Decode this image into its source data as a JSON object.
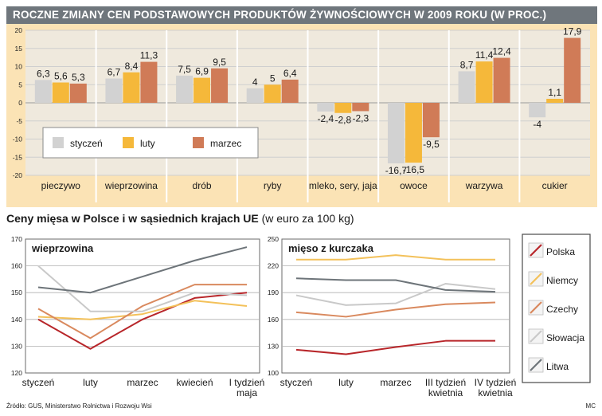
{
  "title": "ROCZNE ZMIANY CEN PODSTAWOWYCH PRODUKTÓW ŻYWNOŚCIOWYCH W 2009 ROKU (W PROC.)",
  "subtitle_bold": "Ceny mięsa w Polsce i w sąsiednich krajach UE",
  "subtitle_rest": " (w euro za 100 kg)",
  "source": "Źródło: GUS, Ministerstwo Rolnictwa i Rozwoju Wsi",
  "credit": "MC",
  "chart_data": [
    {
      "type": "bar",
      "title": "ROCZNE ZMIANY CEN PODSTAWOWYCH PRODUKTÓW ŻYWNOŚCIOWYCH W 2009 ROKU (W PROC.)",
      "categories": [
        "pieczywo",
        "wieprzowina",
        "drób",
        "ryby",
        "mleko, sery, jaja",
        "owoce",
        "warzywa",
        "cukier"
      ],
      "series": [
        {
          "name": "styczeń",
          "color": "#d2d2d2",
          "values": [
            6.3,
            6.7,
            7.5,
            4,
            -2.4,
            -16.7,
            8.7,
            -4
          ]
        },
        {
          "name": "luty",
          "color": "#f5b83a",
          "values": [
            5.6,
            8.4,
            6.9,
            5,
            -2.8,
            -16.5,
            11.4,
            1.1
          ]
        },
        {
          "name": "marzec",
          "color": "#d07b57",
          "values": [
            5.3,
            11.3,
            9.5,
            6.4,
            -2.3,
            -9.5,
            12.4,
            17.9
          ]
        }
      ],
      "labels": [
        [
          "6,3",
          "5,6",
          "5,3"
        ],
        [
          "6,7",
          "8,4",
          "11,3"
        ],
        [
          "7,5",
          "6,9",
          "9,5"
        ],
        [
          "4",
          "5",
          "6,4"
        ],
        [
          "-2,4",
          "-2,8",
          "-2,3"
        ],
        [
          "-16,7",
          "-16,5",
          "-9,5"
        ],
        [
          "8,7",
          "11,4",
          "12,4"
        ],
        [
          "-4",
          "1,1",
          "17,9"
        ]
      ],
      "ylim": [
        -20,
        20
      ],
      "yticks": [
        20,
        15,
        10,
        5,
        0,
        -5,
        -10,
        -15,
        -20
      ],
      "grid": true,
      "legend_position": "left-middle",
      "background": "#fbe3b5"
    },
    {
      "type": "line",
      "title": "wieprzowina",
      "x": [
        "styczeń",
        "luty",
        "marzec",
        "kwiecień",
        "I tydzień maja"
      ],
      "ylim": [
        120,
        170
      ],
      "yticks": [
        170,
        160,
        150,
        140,
        130,
        120
      ],
      "grid": true,
      "series": [
        {
          "name": "Polska",
          "values": [
            140,
            129,
            140,
            148,
            150
          ]
        },
        {
          "name": "Niemcy",
          "values": [
            141,
            140,
            142,
            147,
            145
          ]
        },
        {
          "name": "Czechy",
          "values": [
            144,
            133,
            145,
            153,
            153
          ]
        },
        {
          "name": "Słowacja",
          "values": [
            160,
            143,
            143,
            150,
            149
          ]
        },
        {
          "name": "Litwa",
          "values": [
            152,
            150,
            156,
            162,
            167
          ]
        }
      ]
    },
    {
      "type": "line",
      "title": "mięso z kurczaka",
      "x": [
        "styczeń",
        "luty",
        "marzec",
        "III tydzień kwietnia",
        "IV tydzień kwietnia"
      ],
      "ylim": [
        100,
        250
      ],
      "yticks": [
        250,
        220,
        190,
        160,
        130,
        100
      ],
      "grid": true,
      "series": [
        {
          "name": "Polska",
          "values": [
            126,
            121,
            129,
            136,
            136
          ]
        },
        {
          "name": "Niemcy",
          "values": [
            227,
            227,
            232,
            227,
            227
          ]
        },
        {
          "name": "Czechy",
          "values": [
            168,
            163,
            171,
            177,
            179
          ]
        },
        {
          "name": "Słowacja",
          "values": [
            187,
            176,
            178,
            200,
            194
          ]
        },
        {
          "name": "Litwa",
          "values": [
            206,
            204,
            204,
            193,
            191
          ]
        }
      ]
    }
  ],
  "line_legend": [
    {
      "name": "Polska",
      "color": "#b8262a"
    },
    {
      "name": "Niemcy",
      "color": "#f3c15a"
    },
    {
      "name": "Czechy",
      "color": "#d9895e"
    },
    {
      "name": "Słowacja",
      "color": "#c9c9c9"
    },
    {
      "name": "Litwa",
      "color": "#6d7479"
    }
  ],
  "colors": {
    "title_bar": "#6f767c",
    "chart_bg": "#fbe3b5",
    "bar_panel": "#efe9dd",
    "line_panel": "#ffffff"
  }
}
